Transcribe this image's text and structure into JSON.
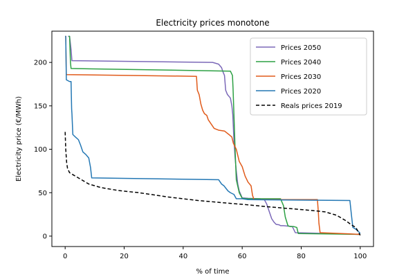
{
  "chart_data": {
    "type": "line",
    "title": "Electricity prices monotone",
    "xlabel": "% of time",
    "ylabel": "Electricity price (€/MWh)",
    "xlim": [
      -4.5,
      104.5
    ],
    "ylim": [
      -12,
      236
    ],
    "xticks": [
      0,
      20,
      40,
      60,
      80,
      100
    ],
    "yticks": [
      0,
      50,
      100,
      150,
      200
    ],
    "grid": false,
    "legend_position": "top-right",
    "series": [
      {
        "name": "Prices 2050",
        "color": "#7b68b8",
        "dash": "",
        "x": [
          1,
          1.5,
          2,
          2.3,
          50,
          52,
          53,
          53.5,
          54,
          54.4,
          55,
          56,
          56.5,
          56.8,
          57.2,
          57.6,
          58,
          58.5,
          59,
          60,
          62,
          66,
          67.5,
          68.3,
          69,
          69.5,
          70,
          70.8,
          71.5,
          72.5,
          73,
          74,
          77,
          78,
          100
        ],
        "y": [
          230,
          230,
          215,
          202,
          200,
          198,
          194,
          189,
          185,
          168,
          163,
          159,
          150,
          140,
          110,
          90,
          75,
          60,
          52,
          44,
          43.5,
          43,
          42,
          37,
          30,
          25,
          20,
          16,
          13.5,
          13,
          12,
          12,
          11,
          4,
          2
        ]
      },
      {
        "name": "Prices 2040",
        "color": "#2ca043",
        "dash": "",
        "x": [
          1.2,
          1.5,
          1.8,
          2,
          56,
          56.7,
          56.9,
          57.1,
          57.4,
          57.7,
          58,
          59,
          60,
          62,
          73,
          74,
          74.6,
          75.5,
          76.3,
          77.5,
          78.5,
          79,
          100
        ],
        "y": [
          230,
          230,
          200,
          193,
          190,
          185,
          170,
          150,
          120,
          90,
          65,
          50,
          43.5,
          43,
          43,
          35,
          22,
          12,
          11,
          11,
          10,
          3,
          2
        ]
      },
      {
        "name": "Prices 2030",
        "color": "#e05a1a",
        "dash": "",
        "x": [
          0,
          0.2,
          0.4,
          44.5,
          44.8,
          45.4,
          46,
          46.6,
          47.2,
          48,
          48.5,
          49.5,
          50.5,
          52,
          54,
          55.5,
          56.5,
          57,
          58,
          59,
          60,
          61,
          62,
          63,
          63.5,
          64,
          85.5,
          85.8,
          86,
          86.4,
          100
        ],
        "y": [
          230,
          230,
          186,
          184,
          168,
          163,
          152,
          145,
          141,
          139,
          134,
          129,
          124,
          122,
          121,
          117,
          114,
          107,
          100,
          86,
          80,
          69,
          62,
          58,
          47,
          42,
          42,
          28,
          15,
          4,
          2
        ]
      },
      {
        "name": "Prices 2020",
        "color": "#2377b4",
        "dash": "",
        "x": [
          0,
          0.2,
          0.4,
          1.5,
          2,
          2.2,
          2.3,
          2.6,
          3.5,
          4.5,
          5.2,
          6,
          7,
          8,
          8.6,
          9,
          52,
          53,
          53.8,
          54.5,
          55.2,
          56,
          56.6,
          57.2,
          58,
          60,
          62,
          96.5,
          97,
          97.5,
          98.5,
          99.5,
          100
        ],
        "y": [
          230,
          230,
          180,
          178,
          178,
          146,
          141,
          117,
          114,
          111,
          105,
          97,
          94,
          90,
          79,
          67,
          65,
          60,
          58,
          55,
          52,
          50,
          49,
          48,
          43,
          43,
          42,
          41,
          25,
          10,
          8,
          5,
          3
        ]
      },
      {
        "name": "Reals prices 2019",
        "color": "#000000",
        "dash": "5,3",
        "x": [
          0,
          0.2,
          0.5,
          0.8,
          1.5,
          3,
          5,
          8,
          12,
          18,
          25,
          35,
          45,
          55,
          62,
          68,
          75,
          82,
          88,
          92,
          95,
          97,
          98.5,
          99.3,
          100
        ],
        "y": [
          120,
          100,
          85,
          78,
          73,
          70,
          66,
          60,
          56,
          52.5,
          50,
          45,
          41,
          38,
          36,
          34,
          32,
          30,
          28,
          24,
          18,
          13,
          10,
          5,
          1
        ]
      }
    ]
  }
}
